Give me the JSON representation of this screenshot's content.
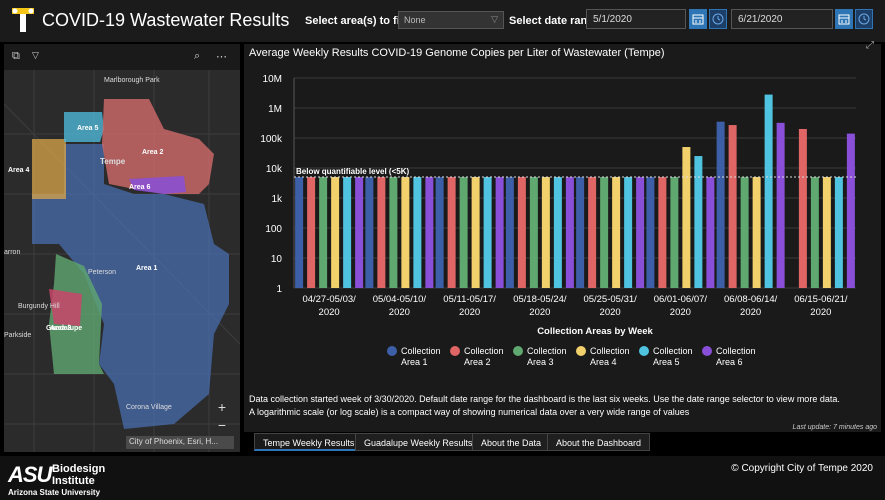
{
  "header": {
    "title": "COVID-19 Wastewater Results",
    "filter_label": "Select area(s) to filter",
    "filter_value": "None",
    "date_label": "Select date range",
    "start_date": "5/1/2020",
    "end_date": "6/21/2020"
  },
  "map": {
    "attribution": "City of Phoenix, Esri, H...",
    "zoom_in": "+",
    "zoom_out": "−",
    "areas": [
      {
        "name": "Area 1"
      },
      {
        "name": "Area 2"
      },
      {
        "name": "Area 3"
      },
      {
        "name": "Area 4"
      },
      {
        "name": "Area 5"
      },
      {
        "name": "Area 6"
      }
    ],
    "places": [
      "Marlborough Park",
      "Tempe",
      "Peterson",
      "Guadalupe",
      "Burgundy Hill",
      "Parkside",
      "Corona Village",
      "arron"
    ]
  },
  "chart_title": "Average Weekly Results COVID-19 Genome Copies per Liter of Wastewater (Tempe)",
  "chart_data": {
    "type": "bar",
    "title": "Average Weekly Results COVID-19 Genome Copies per Liter of Wastewater (Tempe)",
    "xlabel": "Collection Areas by Week",
    "ylabel": "",
    "yscale": "log",
    "ylim": [
      1,
      10000000
    ],
    "yticks": [
      "1",
      "10",
      "100",
      "1k",
      "10k",
      "100k",
      "1M",
      "10M"
    ],
    "categories": [
      "04/27-05/03/\n2020",
      "05/04-05/10/\n2020",
      "05/11-05/17/\n2020",
      "05/18-05/24/\n2020",
      "05/25-05/31/\n2020",
      "06/01-06/07/\n2020",
      "06/08-06/14/\n2020",
      "06/15-06/21/\n2020"
    ],
    "threshold": {
      "value": 5000,
      "label": "Below quantifiable level (<5K)"
    },
    "legend_position": "bottom",
    "series": [
      {
        "name": "Collection Area 1",
        "color": "#3c5fa8",
        "values": [
          5000,
          5000,
          5000,
          5000,
          5000,
          5000,
          350000,
          null
        ]
      },
      {
        "name": "Collection Area 2",
        "color": "#e06666",
        "values": [
          5000,
          5000,
          5000,
          5000,
          5000,
          5000,
          270000,
          200000
        ]
      },
      {
        "name": "Collection Area 3",
        "color": "#5fa870",
        "values": [
          5000,
          5000,
          5000,
          5000,
          5000,
          5000,
          5000,
          5000
        ]
      },
      {
        "name": "Collection Area 4",
        "color": "#f2d06b",
        "values": [
          5000,
          5000,
          5000,
          5000,
          5000,
          50000,
          5000,
          5000
        ]
      },
      {
        "name": "Collection Area 5",
        "color": "#4fc3e0",
        "values": [
          5000,
          5000,
          5000,
          5000,
          5000,
          25000,
          2800000,
          5000
        ]
      },
      {
        "name": "Collection Area 6",
        "color": "#8a4fd8",
        "values": [
          5000,
          5000,
          5000,
          5000,
          5000,
          5000,
          320000,
          140000
        ]
      }
    ]
  },
  "notes": {
    "line1": "Data collection started week of 3/30/2020. Default date range for the dashboard is the last six weeks. Use the date range selector to view  more data.",
    "line2": "A logarithmic scale (or log scale) is a compact way of showing numerical data over a very wide range of values",
    "last_update": "Last update: 7 minutes ago"
  },
  "tabs": [
    "Tempe Weekly Results",
    "Guadalupe Weekly Results",
    "About the Data",
    "About the Dashboard"
  ],
  "footer": {
    "asu": "ASU",
    "bio1": "Biodesign",
    "bio2": "Institute",
    "university": "Arizona State University",
    "copyright": "© Copyright City of Tempe 2020"
  }
}
